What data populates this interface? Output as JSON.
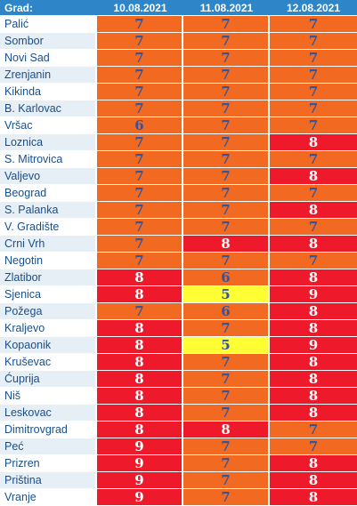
{
  "header": {
    "city_label": "Grad:",
    "dates": [
      "10.08.2021",
      "11.08.2021",
      "12.08.2021"
    ]
  },
  "colors": {
    "7": "#f26a22",
    "6": "#f26a22",
    "8": "#ee1a2c",
    "9": "#ee1a2c",
    "5": "#ffff33"
  },
  "rows": [
    {
      "city": "Palić",
      "values": [
        "7",
        "7",
        "7"
      ]
    },
    {
      "city": "Sombor",
      "values": [
        "7",
        "7",
        "7"
      ]
    },
    {
      "city": "Novi Sad",
      "values": [
        "7",
        "7",
        "7"
      ]
    },
    {
      "city": "Zrenjanin",
      "values": [
        "7",
        "7",
        "7"
      ]
    },
    {
      "city": "Kikinda",
      "values": [
        "7",
        "7",
        "7"
      ]
    },
    {
      "city": "B. Karlovac",
      "values": [
        "7",
        "7",
        "7"
      ]
    },
    {
      "city": "Vršac",
      "values": [
        "6",
        "7",
        "7"
      ]
    },
    {
      "city": "Loznica",
      "values": [
        "7",
        "7",
        "8"
      ]
    },
    {
      "city": "S. Mitrovica",
      "values": [
        "7",
        "7",
        "7"
      ]
    },
    {
      "city": "Valjevo",
      "values": [
        "7",
        "7",
        "8"
      ]
    },
    {
      "city": "Beograd",
      "values": [
        "7",
        "7",
        "7"
      ]
    },
    {
      "city": "S. Palanka",
      "values": [
        "7",
        "7",
        "8"
      ]
    },
    {
      "city": "V. Gradište",
      "values": [
        "7",
        "7",
        "7"
      ]
    },
    {
      "city": "Crni Vrh",
      "values": [
        "7",
        "8",
        "8"
      ]
    },
    {
      "city": "Negotin",
      "values": [
        "7",
        "7",
        "7"
      ]
    },
    {
      "city": "Zlatibor",
      "values": [
        "8",
        "6",
        "8"
      ]
    },
    {
      "city": "Sjenica",
      "values": [
        "8",
        "5",
        "9"
      ]
    },
    {
      "city": "Požega",
      "values": [
        "7",
        "6",
        "8"
      ]
    },
    {
      "city": "Kraljevo",
      "values": [
        "8",
        "7",
        "8"
      ]
    },
    {
      "city": "Kopaonik",
      "values": [
        "8",
        "5",
        "9"
      ]
    },
    {
      "city": "Kruševac",
      "values": [
        "8",
        "7",
        "8"
      ]
    },
    {
      "city": "Ćuprija",
      "values": [
        "8",
        "7",
        "8"
      ]
    },
    {
      "city": "Niš",
      "values": [
        "8",
        "7",
        "8"
      ]
    },
    {
      "city": "Leskovac",
      "values": [
        "8",
        "7",
        "8"
      ]
    },
    {
      "city": "Dimitrovgrad",
      "values": [
        "8",
        "8",
        "7"
      ]
    },
    {
      "city": "Peć",
      "values": [
        "9",
        "7",
        "7"
      ]
    },
    {
      "city": "Prizren",
      "values": [
        "9",
        "7",
        "8"
      ]
    },
    {
      "city": "Priština",
      "values": [
        "9",
        "7",
        "8"
      ]
    },
    {
      "city": "Vranje",
      "values": [
        "9",
        "7",
        "8"
      ]
    }
  ]
}
